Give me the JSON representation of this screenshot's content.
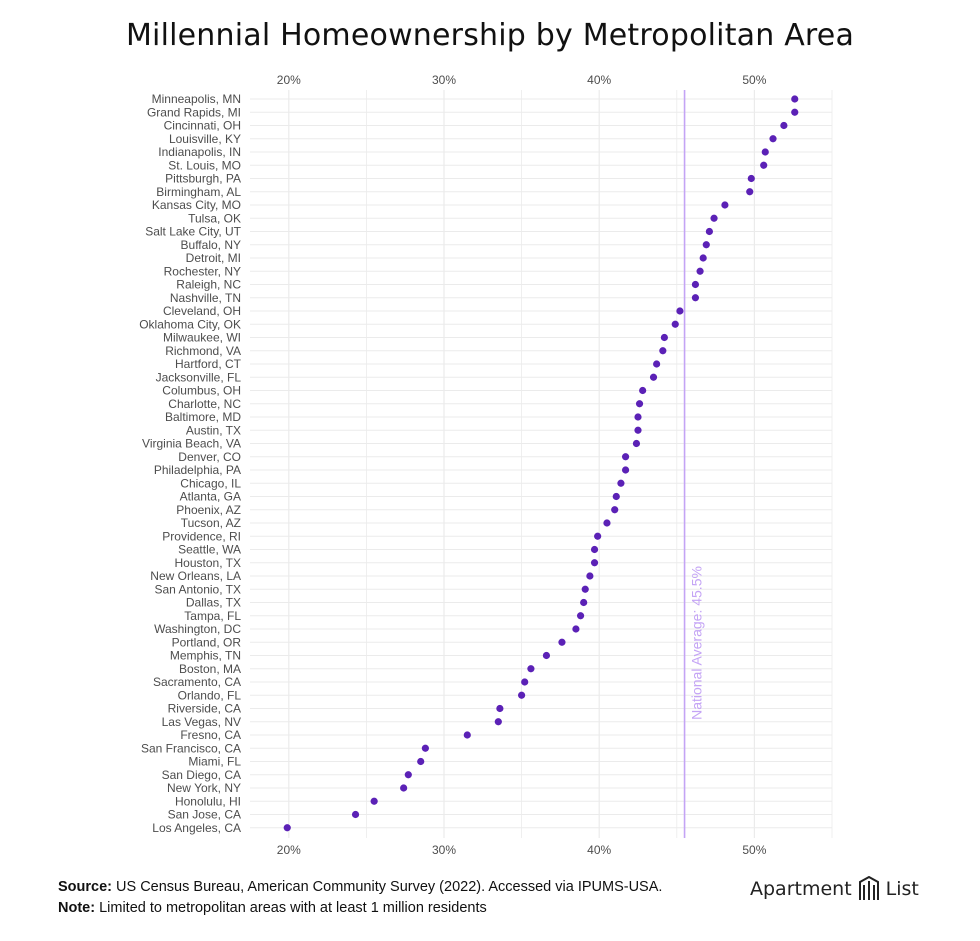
{
  "title": "Millennial Homeownership by Metropolitan Area",
  "colors": {
    "point": "#5b21b6",
    "avgLine": "#c4a4f5",
    "grid": "#ebebeb",
    "text": "#4d4d4d"
  },
  "footer": {
    "source_label": "Source:",
    "source_text": " US Census Bureau, American Community Survey (2022). Accessed via IPUMS-USA.",
    "note_label": "Note:",
    "note_text": " Limited to metropolitan areas with at least 1 million residents"
  },
  "logo": {
    "left": "Apartment",
    "right": "List",
    "icon": "building-logo-icon"
  },
  "chart_data": {
    "type": "scatter",
    "title": "Millennial Homeownership by Metropolitan Area",
    "xlabel": "",
    "ylabel": "",
    "xlim": [
      17.5,
      55
    ],
    "x_ticks": [
      20,
      30,
      40,
      50
    ],
    "x_tick_labels": [
      "20%",
      "30%",
      "40%",
      "50%"
    ],
    "x_axis_position": "top and bottom",
    "grid": true,
    "reference_line": {
      "value": 45.5,
      "label": "National Average: 45.5%"
    },
    "categories": [
      "Minneapolis, MN",
      "Grand Rapids, MI",
      "Cincinnati, OH",
      "Louisville, KY",
      "Indianapolis, IN",
      "St. Louis, MO",
      "Pittsburgh, PA",
      "Birmingham, AL",
      "Kansas City, MO",
      "Tulsa, OK",
      "Salt Lake City, UT",
      "Buffalo, NY",
      "Detroit, MI",
      "Rochester, NY",
      "Raleigh, NC",
      "Nashville, TN",
      "Cleveland, OH",
      "Oklahoma City, OK",
      "Milwaukee, WI",
      "Richmond, VA",
      "Hartford, CT",
      "Jacksonville, FL",
      "Columbus, OH",
      "Charlotte, NC",
      "Baltimore, MD",
      "Austin, TX",
      "Virginia Beach, VA",
      "Denver, CO",
      "Philadelphia, PA",
      "Chicago, IL",
      "Atlanta, GA",
      "Phoenix, AZ",
      "Tucson, AZ",
      "Providence, RI",
      "Seattle, WA",
      "Houston, TX",
      "New Orleans, LA",
      "San Antonio, TX",
      "Dallas, TX",
      "Tampa, FL",
      "Washington, DC",
      "Portland, OR",
      "Memphis, TN",
      "Boston, MA",
      "Sacramento, CA",
      "Orlando, FL",
      "Riverside, CA",
      "Las Vegas, NV",
      "Fresno, CA",
      "San Francisco, CA",
      "Miami, FL",
      "San Diego, CA",
      "New York, NY",
      "Honolulu, HI",
      "San Jose, CA",
      "Los Angeles, CA"
    ],
    "values": [
      52.6,
      52.6,
      51.9,
      51.2,
      50.7,
      50.6,
      49.8,
      49.7,
      48.1,
      47.4,
      47.1,
      46.9,
      46.7,
      46.5,
      46.2,
      46.2,
      45.2,
      44.9,
      44.2,
      44.1,
      43.7,
      43.5,
      42.8,
      42.6,
      42.5,
      42.5,
      42.4,
      41.7,
      41.7,
      41.4,
      41.1,
      41.0,
      40.5,
      39.9,
      39.7,
      39.7,
      39.4,
      39.1,
      39.0,
      38.8,
      38.5,
      37.6,
      36.6,
      35.6,
      35.2,
      35.0,
      33.6,
      33.5,
      31.5,
      28.8,
      28.5,
      27.7,
      27.4,
      25.5,
      24.3,
      19.9
    ]
  }
}
